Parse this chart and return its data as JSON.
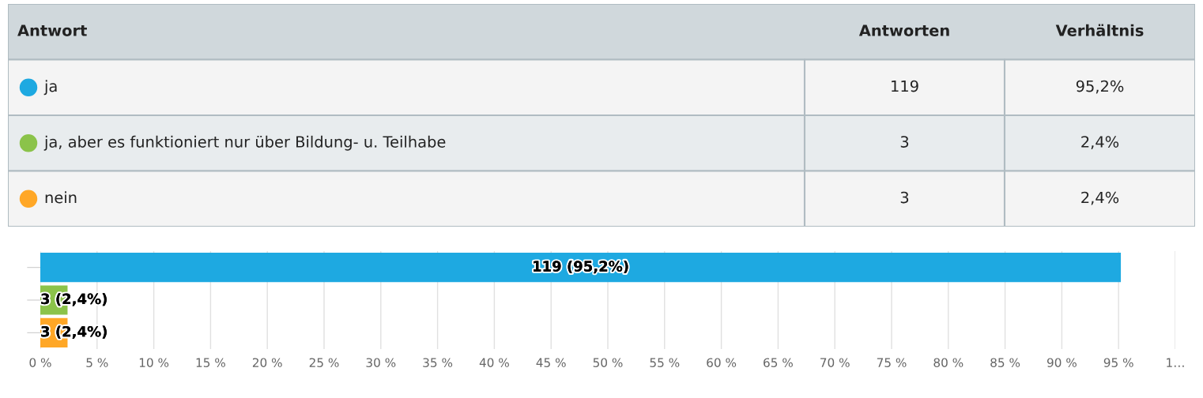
{
  "chart_data": [
    {
      "type": "other",
      "categories": [
        "ja",
        "ja, aber es funktioniert nur über Bildung- u. Teilhabe",
        "nein"
      ],
      "colors": [
        "#1ea9e1",
        "#8bc34a",
        "#ffa726"
      ],
      "annotations": [
        "Antwort",
        "Antworten",
        "Verhältnis",
        "119",
        "95,2%",
        "3",
        "2,4%",
        "3",
        "2,4%"
      ]
    },
    {
      "type": "bar",
      "orientation": "horizontal",
      "categories": [
        null,
        null,
        null
      ],
      "values": [
        95.2,
        2.4,
        2.4
      ],
      "colors": [
        "#1ea9e1",
        "#8bc34a",
        "#ffa726"
      ],
      "value_labels": [
        "119 (95,2%)",
        "3 (2,4%)",
        "3 (2,4%)"
      ],
      "xlim": [
        0,
        100
      ],
      "xticks": [
        {
          "value": 0,
          "label": "0 %"
        },
        {
          "value": 5,
          "label": "5 %"
        },
        {
          "value": 10,
          "label": "10 %"
        },
        {
          "value": 15,
          "label": "15 %"
        },
        {
          "value": 20,
          "label": "20 %"
        },
        {
          "value": 25,
          "label": "25 %"
        },
        {
          "value": 30,
          "label": "30 %"
        },
        {
          "value": 35,
          "label": "35 %"
        },
        {
          "value": 40,
          "label": "40 %"
        },
        {
          "value": 45,
          "label": "45 %"
        },
        {
          "value": 50,
          "label": "50 %"
        },
        {
          "value": 55,
          "label": "55 %"
        },
        {
          "value": 60,
          "label": "60 %"
        },
        {
          "value": 65,
          "label": "65 %"
        },
        {
          "value": 70,
          "label": "70 %"
        },
        {
          "value": 75,
          "label": "75 %"
        },
        {
          "value": 80,
          "label": "80 %"
        },
        {
          "value": 85,
          "label": "85 %"
        },
        {
          "value": 90,
          "label": "90 %"
        },
        {
          "value": 95,
          "label": "95 %"
        },
        {
          "value": 100,
          "label": "1…"
        }
      ],
      "grid": "x"
    }
  ]
}
